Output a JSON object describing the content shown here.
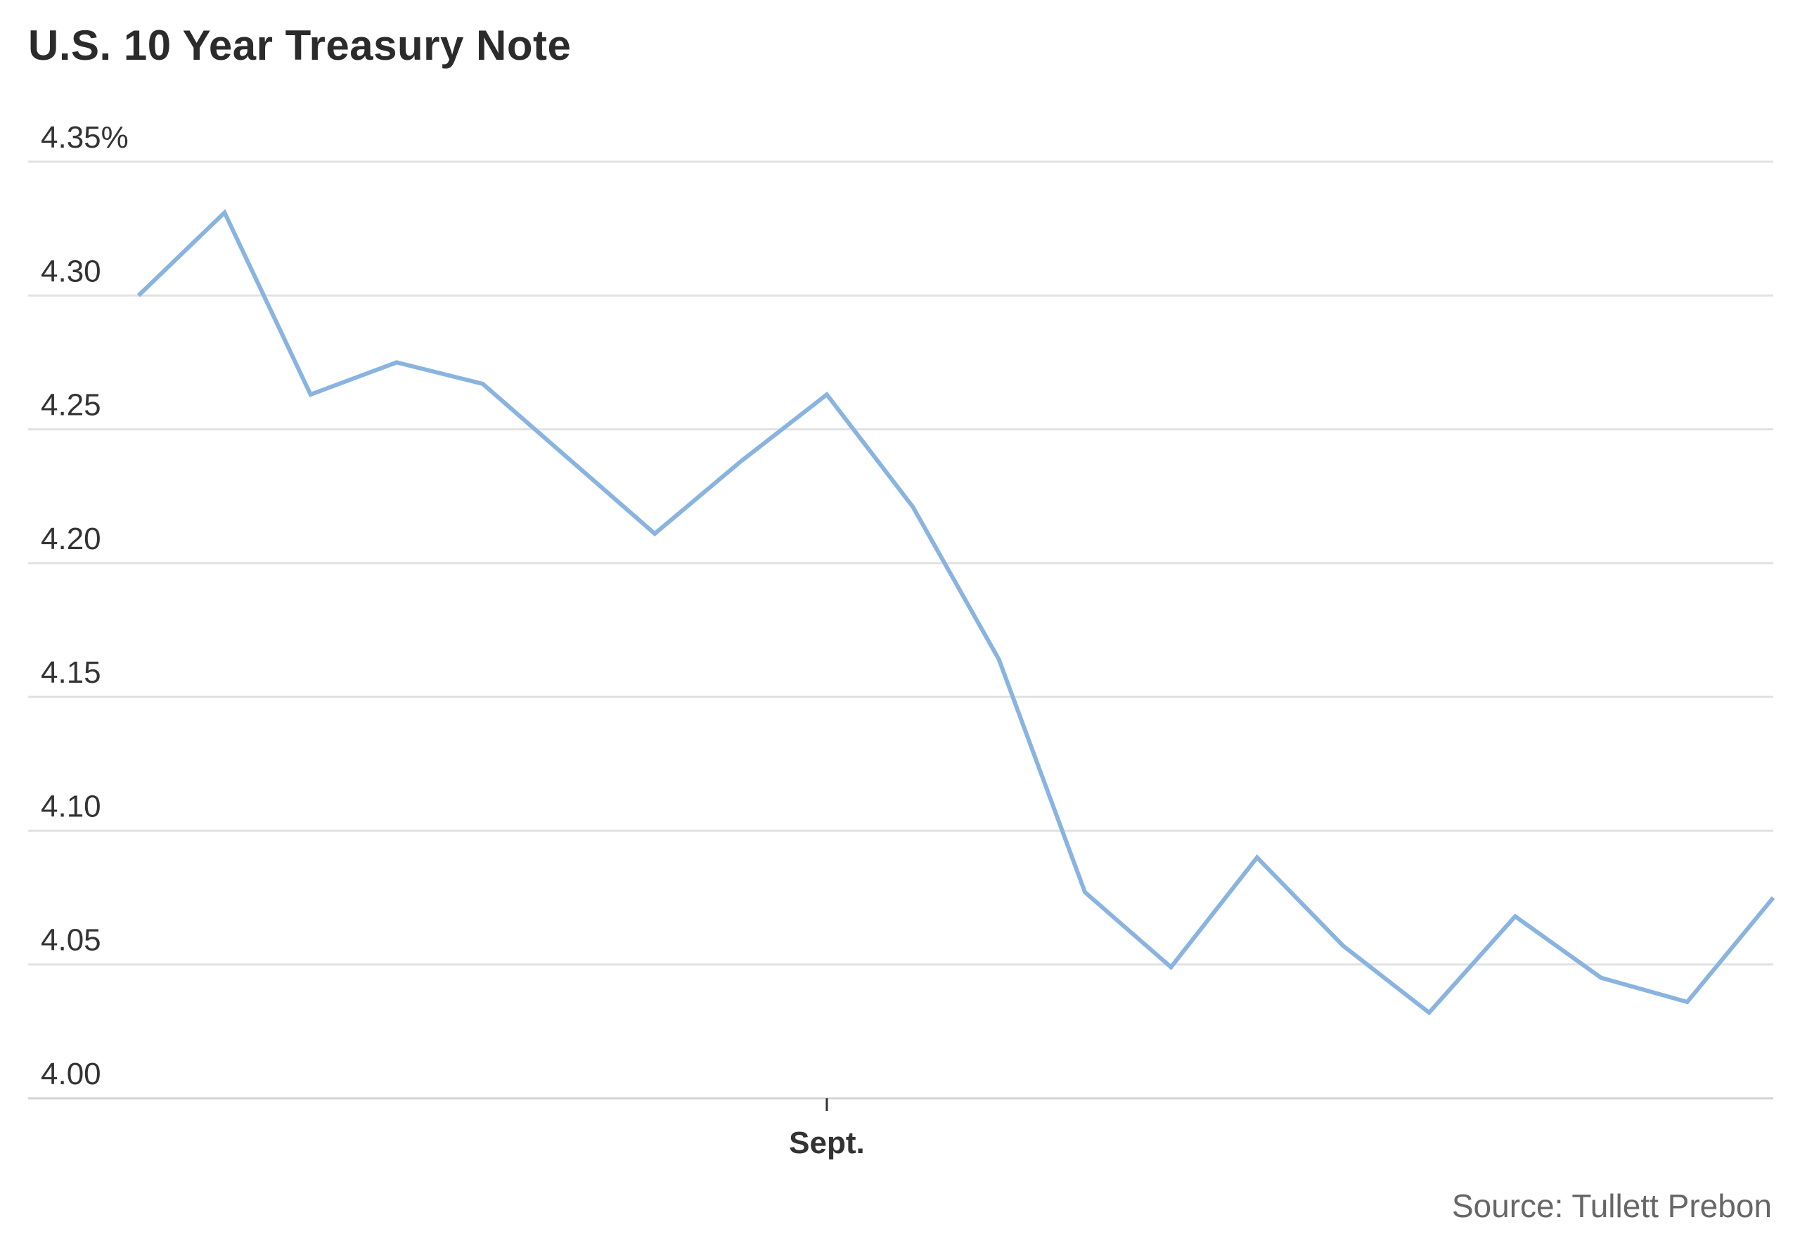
{
  "chart_data": {
    "type": "line",
    "title": "U.S. 10 Year Treasury Note",
    "source": "Source: Tullett Prebon",
    "ylim": [
      4.0,
      4.35
    ],
    "yticks": [
      {
        "value": 4.35,
        "label": "4.35%"
      },
      {
        "value": 4.3,
        "label": "4.30"
      },
      {
        "value": 4.25,
        "label": "4.25"
      },
      {
        "value": 4.2,
        "label": "4.20"
      },
      {
        "value": 4.15,
        "label": "4.15"
      },
      {
        "value": 4.1,
        "label": "4.10"
      },
      {
        "value": 4.05,
        "label": "4.05"
      },
      {
        "value": 4.0,
        "label": "4.00"
      }
    ],
    "xticks": [
      {
        "index": 8,
        "label": "Sept."
      }
    ],
    "grid": true,
    "line_color": "#89b4e0",
    "series": [
      {
        "values": [
          4.3,
          4.331,
          4.263,
          4.275,
          4.267,
          4.239,
          4.211,
          4.238,
          4.263,
          4.221,
          4.164,
          4.077,
          4.049,
          4.09,
          4.057,
          4.032,
          4.068,
          4.045,
          4.036,
          4.075
        ]
      }
    ]
  }
}
